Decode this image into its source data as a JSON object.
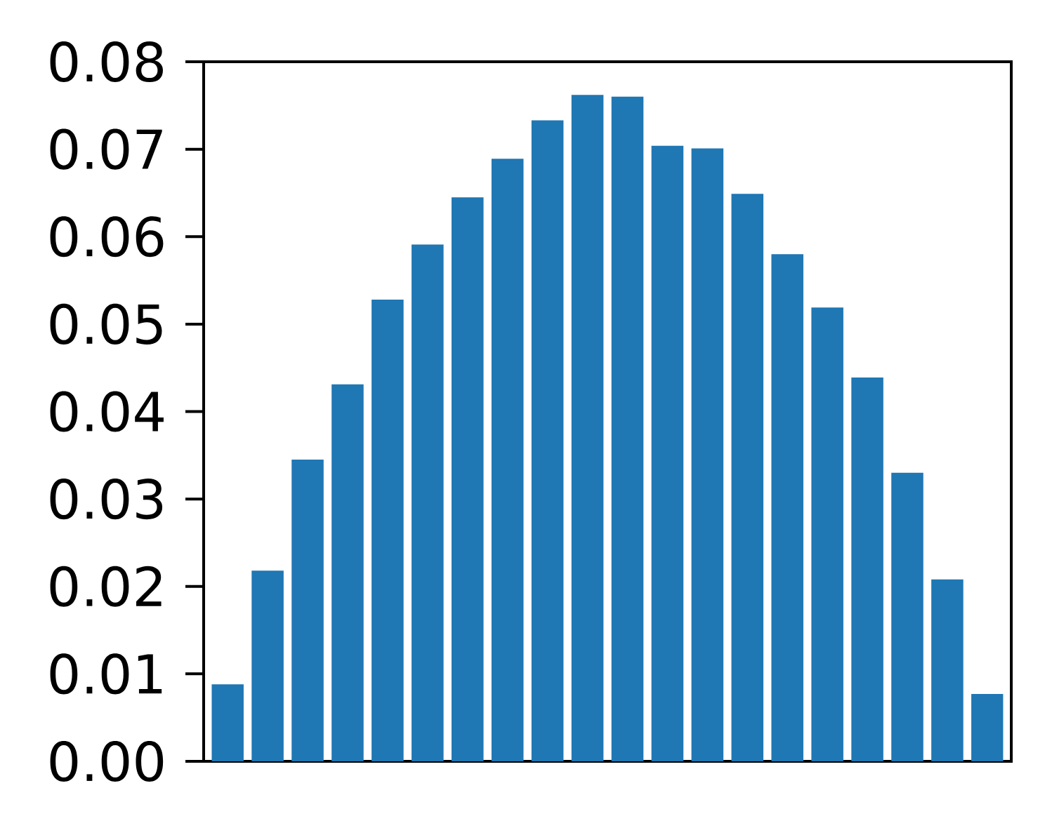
{
  "chart_data": {
    "type": "bar",
    "categories": [
      null,
      null,
      null,
      null,
      null,
      null,
      null,
      null,
      null,
      null,
      null,
      null,
      null,
      null,
      null,
      null,
      null,
      null,
      null,
      null
    ],
    "values": [
      0.0088,
      0.0218,
      0.0345,
      0.0431,
      0.0528,
      0.0591,
      0.0645,
      0.0689,
      0.0733,
      0.0762,
      0.076,
      0.0704,
      0.0701,
      0.0649,
      0.058,
      0.0519,
      0.0439,
      0.033,
      0.0208,
      0.0077
    ],
    "color": "#1f77b4",
    "ylim": [
      0,
      0.08
    ],
    "yticks": [
      {
        "value": 0,
        "label": "0.00"
      },
      {
        "value": 0.01,
        "label": "0.01"
      },
      {
        "value": 0.02,
        "label": "0.02"
      },
      {
        "value": 0.03,
        "label": "0.03"
      },
      {
        "value": 0.04,
        "label": "0.04"
      },
      {
        "value": 0.05,
        "label": "0.05"
      },
      {
        "value": 0.06,
        "label": "0.06"
      },
      {
        "value": 0.07,
        "label": "0.07"
      },
      {
        "value": 0.08,
        "label": "0.08"
      }
    ],
    "tick_labels": "y"
  }
}
